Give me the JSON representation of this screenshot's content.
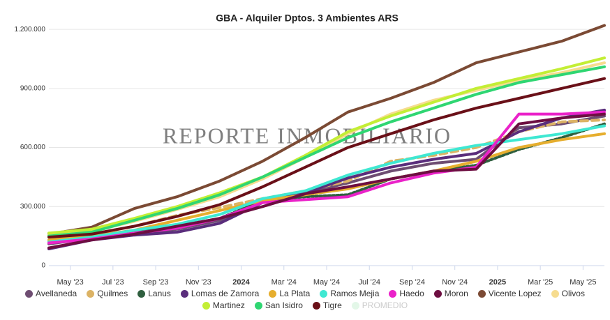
{
  "chart_data": {
    "type": "line",
    "title": "GBA - Alquiler Dptos. 3 Ambientes ARS",
    "watermark": "REPORTE INMOBILIARIO",
    "x": [
      "2023-04",
      "2023-06",
      "2023-08",
      "2023-10",
      "2023-12",
      "2024-02",
      "2024-04",
      "2024-06",
      "2024-08",
      "2024-10",
      "2024-12",
      "2025-02",
      "2025-04",
      "2025-06"
    ],
    "xlim": [
      "2023-04",
      "2025-06"
    ],
    "xticks": [
      {
        "value": "2023-05",
        "label": "May '23"
      },
      {
        "value": "2023-07",
        "label": "Jul '23"
      },
      {
        "value": "2023-09",
        "label": "Sep '23"
      },
      {
        "value": "2023-11",
        "label": "Nov '23"
      },
      {
        "value": "2024-01",
        "label": "2024"
      },
      {
        "value": "2024-03",
        "label": "Mar '24"
      },
      {
        "value": "2024-05",
        "label": "May '24"
      },
      {
        "value": "2024-07",
        "label": "Jul '24"
      },
      {
        "value": "2024-09",
        "label": "Sep '24"
      },
      {
        "value": "2024-11",
        "label": "Nov '24"
      },
      {
        "value": "2025-01",
        "label": "2025"
      },
      {
        "value": "2025-03",
        "label": "Mar '25"
      },
      {
        "value": "2025-05",
        "label": "May '25"
      }
    ],
    "ylim": [
      0,
      1250000
    ],
    "yticks": [
      0,
      {
        "value": 300000,
        "label": "300.000"
      },
      {
        "value": 600000,
        "label": "600.000"
      },
      {
        "value": 900000,
        "label": "900.000"
      },
      {
        "value": 1200000,
        "label": "1.200.000"
      }
    ],
    "legend": "bottom",
    "series": [
      {
        "name": "Avellaneda",
        "color": "#6e4d72",
        "values": [
          110000,
          140000,
          160000,
          185000,
          230000,
          330000,
          370000,
          420000,
          480000,
          520000,
          540000,
          700000,
          720000,
          760000
        ]
      },
      {
        "name": "Quilmes",
        "color": "#dcb365",
        "dash": "dashed",
        "values": [
          130000,
          160000,
          200000,
          255000,
          295000,
          340000,
          380000,
          430000,
          530000,
          560000,
          600000,
          680000,
          730000,
          740000
        ]
      },
      {
        "name": "Lanus",
        "color": "#2f5f3f",
        "dash": "dotted",
        "values": [
          120000,
          140000,
          170000,
          200000,
          240000,
          330000,
          350000,
          360000,
          440000,
          480000,
          510000,
          590000,
          650000,
          720000
        ]
      },
      {
        "name": "Lomas de Zamora",
        "color": "#5a2d7c",
        "values": [
          85000,
          130000,
          155000,
          170000,
          215000,
          320000,
          370000,
          445000,
          500000,
          540000,
          570000,
          680000,
          750000,
          790000
        ]
      },
      {
        "name": "La Plata",
        "color": "#e6ae2e",
        "values": [
          130000,
          150000,
          180000,
          230000,
          280000,
          330000,
          360000,
          390000,
          440000,
          480000,
          530000,
          600000,
          640000,
          670000
        ]
      },
      {
        "name": "Ramos Mejia",
        "color": "#3fe8d2",
        "values": [
          120000,
          145000,
          180000,
          210000,
          260000,
          340000,
          380000,
          460000,
          520000,
          570000,
          610000,
          640000,
          670000,
          710000
        ]
      },
      {
        "name": "Haedo",
        "color": "#ea22c9",
        "values": [
          115000,
          135000,
          165000,
          190000,
          240000,
          320000,
          335000,
          350000,
          420000,
          470000,
          500000,
          770000,
          770000,
          780000
        ]
      },
      {
        "name": "Moron",
        "color": "#6d0e41",
        "values": [
          90000,
          130000,
          160000,
          200000,
          240000,
          300000,
          365000,
          400000,
          440000,
          480000,
          490000,
          720000,
          750000,
          770000
        ]
      },
      {
        "name": "Vicente Lopez",
        "color": "#7b4a34",
        "values": [
          160000,
          195000,
          290000,
          350000,
          430000,
          530000,
          650000,
          780000,
          850000,
          930000,
          1030000,
          1085000,
          1140000,
          1220000
        ]
      },
      {
        "name": "Olivos",
        "color": "#f6dc8f",
        "values": [
          155000,
          175000,
          225000,
          285000,
          350000,
          440000,
          550000,
          670000,
          770000,
          840000,
          890000,
          940000,
          980000,
          1030000
        ]
      },
      {
        "name": "Martinez",
        "color": "#c3ee35",
        "values": [
          165000,
          185000,
          240000,
          300000,
          370000,
          450000,
          560000,
          680000,
          760000,
          830000,
          900000,
          950000,
          1000000,
          1055000
        ]
      },
      {
        "name": "San Isidro",
        "color": "#2fd672",
        "values": [
          150000,
          170000,
          230000,
          290000,
          360000,
          450000,
          550000,
          650000,
          730000,
          800000,
          870000,
          930000,
          970000,
          1010000
        ]
      },
      {
        "name": "Tigre",
        "color": "#6a1018",
        "values": [
          145000,
          160000,
          200000,
          250000,
          310000,
          400000,
          500000,
          600000,
          670000,
          740000,
          800000,
          850000,
          900000,
          950000
        ]
      },
      {
        "name": "PROMEDIO",
        "color": "#c8f0d2",
        "visible": false,
        "values": [
          null,
          null,
          null,
          null,
          null,
          null,
          null,
          null,
          null,
          null,
          null,
          null,
          null,
          null
        ]
      }
    ]
  }
}
